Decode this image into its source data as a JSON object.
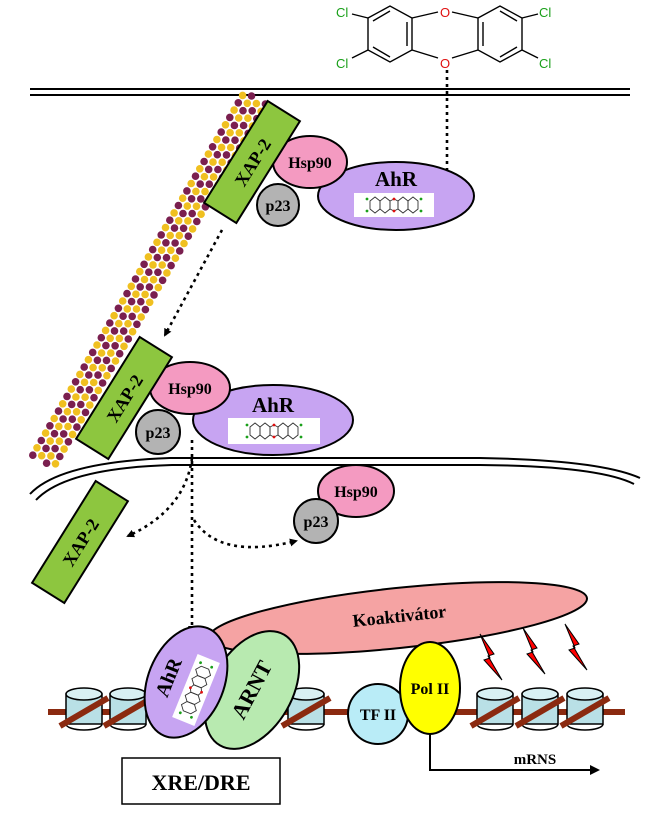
{
  "molecule": {
    "cl_tl": "Cl",
    "cl_tr": "Cl",
    "cl_bl": "Cl",
    "cl_br": "Cl",
    "o_top": "O",
    "o_bottom": "O"
  },
  "complex_top": {
    "xap2": "XAP-2",
    "hsp90": "Hsp90",
    "p23": "p23",
    "ahr": "AhR"
  },
  "complex_mid": {
    "xap2": "XAP-2",
    "hsp90": "Hsp90",
    "p23": "p23",
    "ahr": "AhR"
  },
  "released": {
    "xap2": "XAP-2",
    "hsp90": "Hsp90",
    "p23": "p23"
  },
  "nucleus": {
    "coactivator": "Koaktivátor",
    "ahr": "AhR",
    "arnt": "ARNT",
    "tf2": "TF II",
    "pol2": "Pol II",
    "mrna": "mRNS",
    "xre": "XRE/DRE"
  },
  "colors": {
    "xap2": "#8dc63f",
    "hsp90": "#f49ac1",
    "p23": "#b3b3b3",
    "ahr": "#c7a4f2",
    "arnt": "#b8eab0",
    "coactivator": "#f5a3a3",
    "tf2": "#b9ecf7",
    "pol2": "#ffff00",
    "dna": "#8b2a10",
    "nucleosome": "#b9e0e6",
    "signal": "#ff0000",
    "chlorine": "#1aa01a",
    "oxygen": "#e01010"
  }
}
